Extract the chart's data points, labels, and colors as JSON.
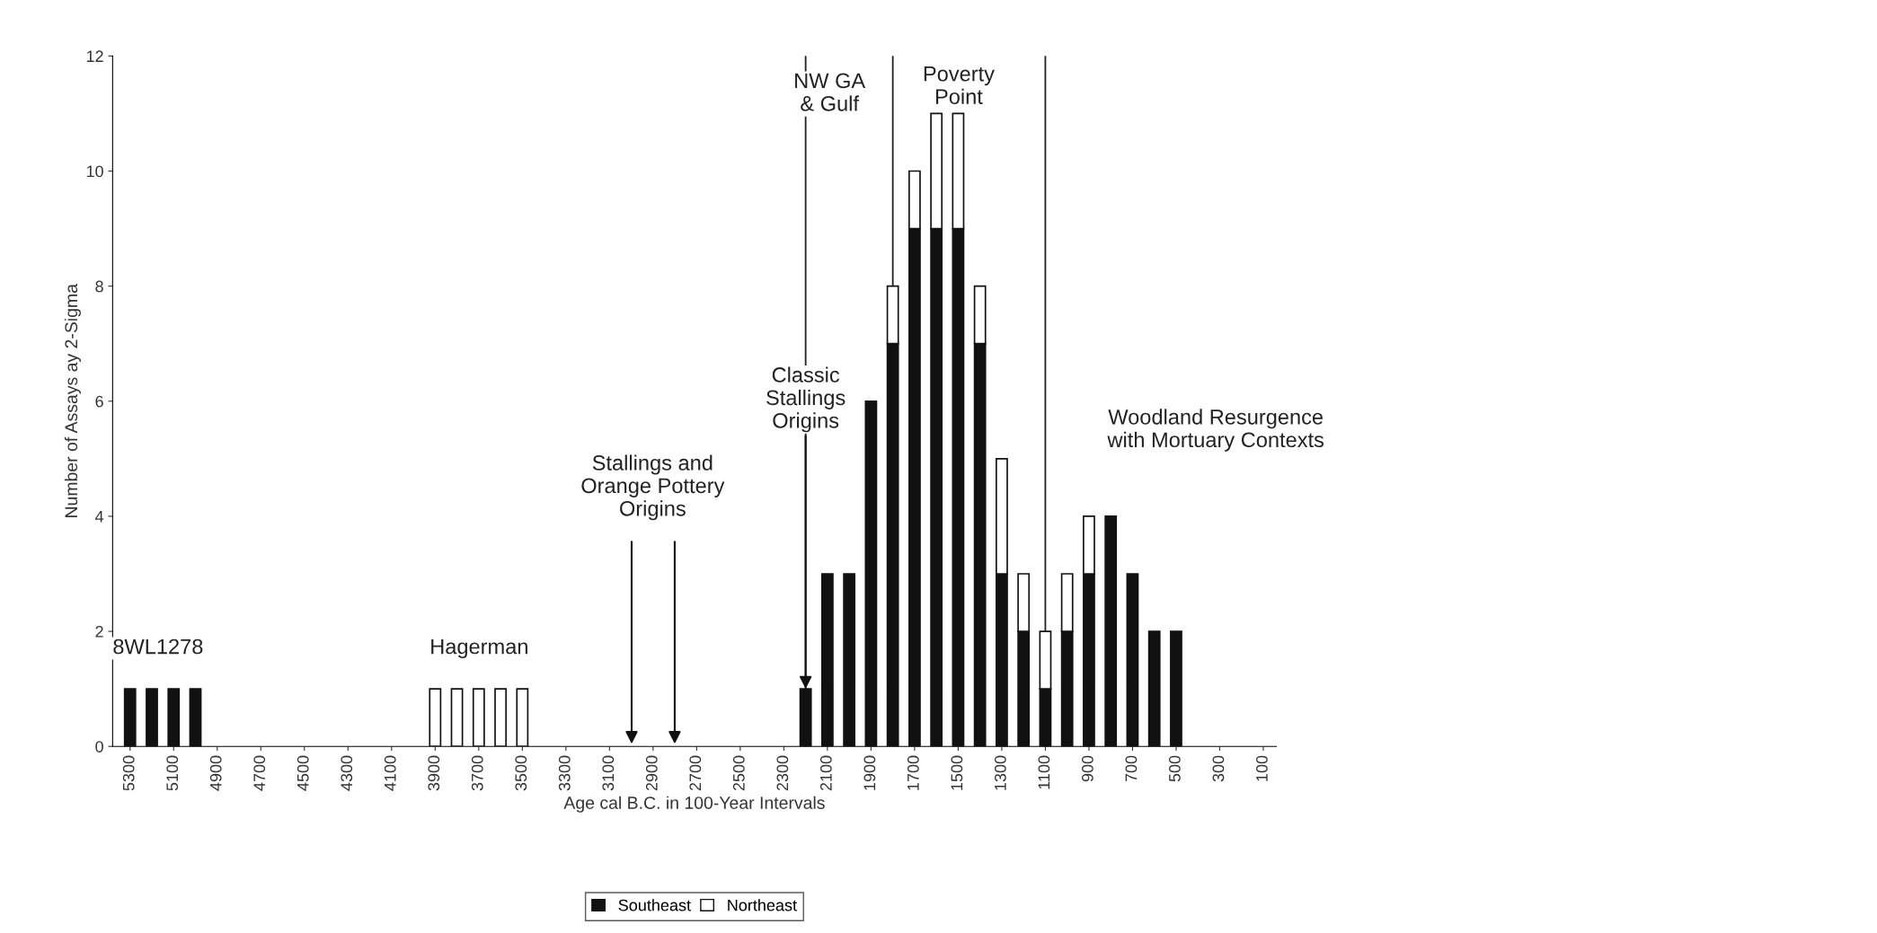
{
  "chart_data": {
    "type": "bar",
    "stacked": true,
    "xlabel": "Age cal B.C. in 100-Year Intervals",
    "ylabel": "Number of Assays ay 2-Sigma",
    "x": [
      5300,
      5200,
      5100,
      5000,
      4900,
      4800,
      4700,
      4600,
      4500,
      4400,
      4300,
      4200,
      4100,
      4000,
      3900,
      3800,
      3700,
      3600,
      3500,
      3400,
      3300,
      3200,
      3100,
      3000,
      2900,
      2800,
      2700,
      2600,
      2500,
      2400,
      2300,
      2200,
      2100,
      2000,
      1900,
      1800,
      1700,
      1600,
      1500,
      1400,
      1300,
      1200,
      1100,
      1000,
      900,
      800,
      700,
      600,
      500
    ],
    "series": [
      {
        "name": "Southeast",
        "color": "#111111",
        "values": [
          1,
          1,
          1,
          1,
          null,
          null,
          null,
          null,
          null,
          null,
          null,
          null,
          null,
          null,
          null,
          null,
          null,
          null,
          null,
          null,
          null,
          null,
          null,
          null,
          null,
          null,
          null,
          null,
          null,
          null,
          null,
          1,
          3,
          3,
          6,
          7,
          9,
          9,
          9,
          7,
          3,
          2,
          1,
          2,
          3,
          4,
          3,
          2,
          2
        ]
      },
      {
        "name": "Northeast",
        "color": "#ffffff",
        "values": [
          null,
          null,
          null,
          null,
          null,
          null,
          null,
          null,
          null,
          null,
          null,
          null,
          null,
          null,
          1,
          1,
          1,
          1,
          1,
          null,
          null,
          null,
          null,
          null,
          null,
          null,
          null,
          null,
          null,
          null,
          null,
          null,
          null,
          null,
          null,
          1,
          1,
          2,
          2,
          1,
          2,
          1,
          1,
          1,
          1,
          null,
          null,
          null,
          null
        ]
      }
    ],
    "xlim": [
      5380,
      40
    ],
    "xticks": [
      5300,
      5100,
      4900,
      4700,
      4500,
      4300,
      4100,
      3900,
      3700,
      3500,
      3300,
      3100,
      2900,
      2700,
      2500,
      2300,
      2100,
      1900,
      1700,
      1500,
      1300,
      1100,
      900,
      700,
      500,
      300,
      100
    ],
    "ylim": [
      0,
      12
    ],
    "yticks": [
      0,
      2,
      4,
      6,
      8,
      10,
      12
    ],
    "grid": false,
    "legend": "bottom",
    "ref_lines": [
      {
        "axis": "x",
        "value": 2200,
        "color": "#222222"
      },
      {
        "axis": "x",
        "value": 1800,
        "color": "#222222"
      },
      {
        "axis": "x",
        "value": 1100,
        "color": "#222222"
      }
    ],
    "annotations": [
      "8WL1278",
      "Hagerman",
      "Stallings and\nOrange Pottery\nOrigins",
      {
        "text": "Classic\nStallings\nOrigins",
        "x": 2200,
        "y": 1
      },
      "NW GA\n& Gulf",
      "Poverty\nPoint",
      "Woodland Resurgence\nwith Mortuary Contexts"
    ]
  }
}
